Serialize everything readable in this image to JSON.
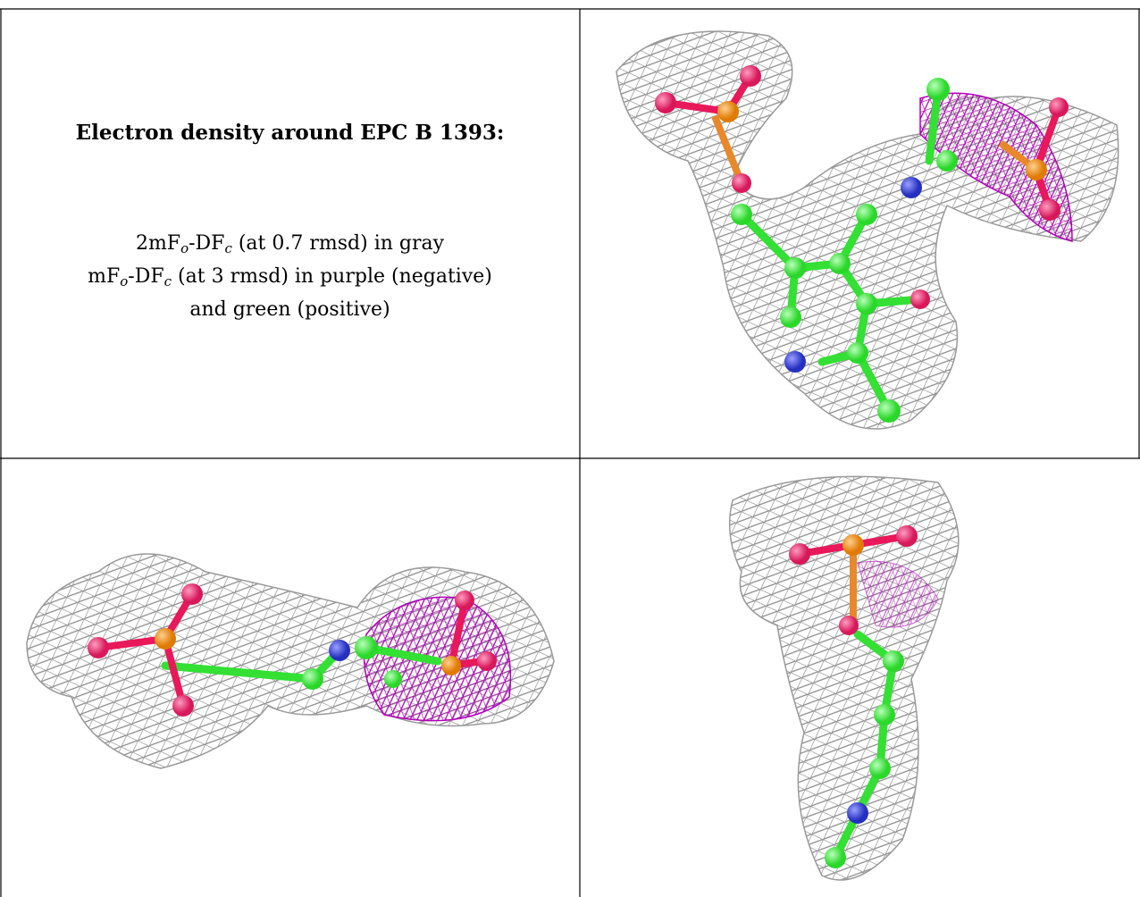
{
  "caption": {
    "title": "Electron density around EPC B 1393:",
    "lines": [
      [
        {
          "text": "2mF"
        },
        {
          "text": "o",
          "sub": true
        },
        {
          "text": "-DF"
        },
        {
          "text": "c",
          "sub": true
        },
        {
          "text": " (at 0.7 rmsd) in gray"
        }
      ],
      [
        {
          "text": "mF"
        },
        {
          "text": "o",
          "sub": true
        },
        {
          "text": "-DF"
        },
        {
          "text": "c",
          "sub": true
        },
        {
          "text": " (at 3 rmsd) in purple (negative)"
        }
      ],
      [
        {
          "text": "and green (positive)"
        }
      ]
    ]
  }
}
